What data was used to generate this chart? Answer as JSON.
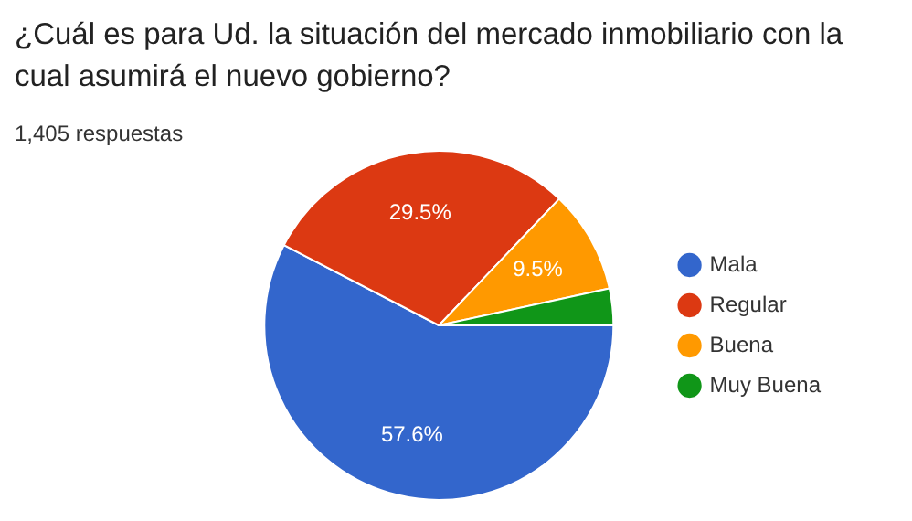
{
  "chart_data": {
    "type": "pie",
    "title": "¿Cuál es para Ud. la situación del mercado inmobiliario con la cual asumirá el nuevo gobierno?",
    "subtitle": "1,405 respuestas",
    "categories": [
      "Mala",
      "Regular",
      "Buena",
      "Muy Buena"
    ],
    "values": [
      57.6,
      29.5,
      9.5,
      3.4
    ],
    "colors": [
      "#3366cc",
      "#dc3912",
      "#ff9900",
      "#109618"
    ],
    "value_labels": [
      "57.6%",
      "29.5%",
      "9.5%",
      null
    ],
    "legend": "right"
  }
}
